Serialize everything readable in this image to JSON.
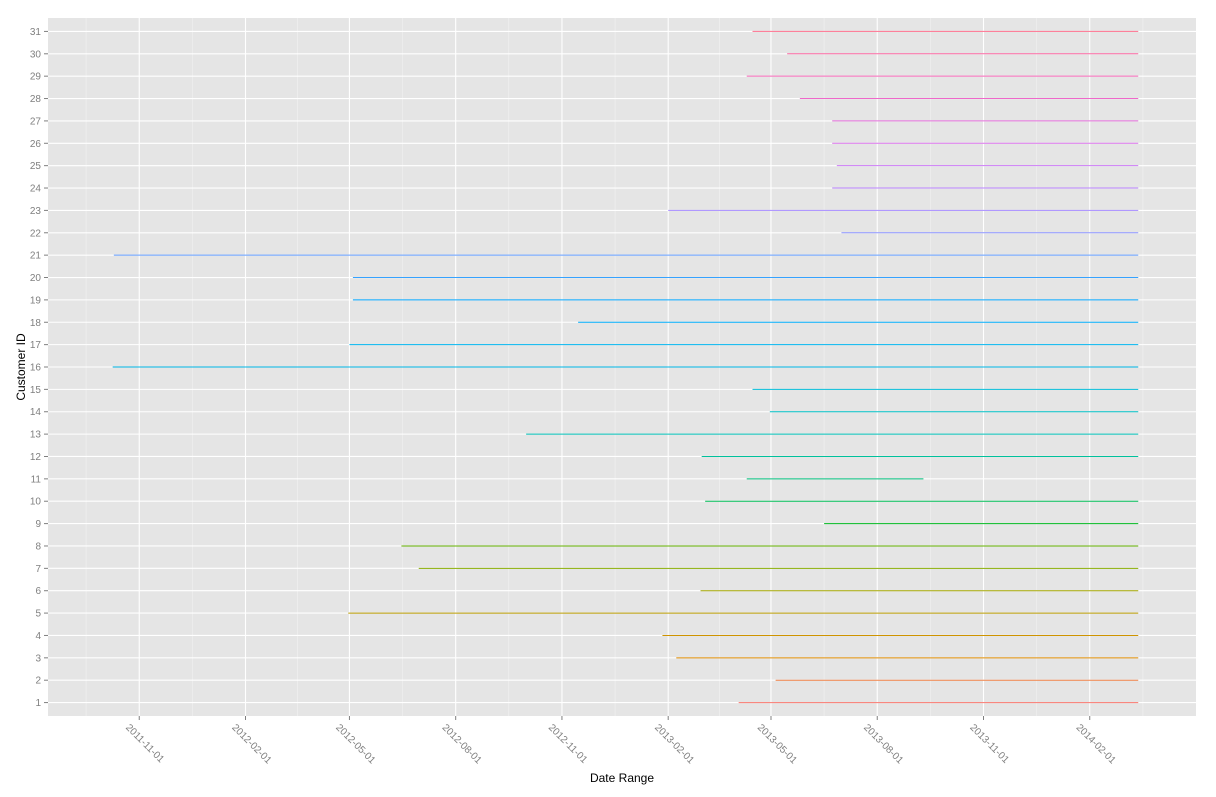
{
  "chart_data": {
    "type": "line",
    "xlabel": "Date Range",
    "ylabel": "Customer ID",
    "x_ticks": [
      "2011-11-01",
      "2012-02-01",
      "2012-05-01",
      "2012-08-01",
      "2012-11-01",
      "2013-02-01",
      "2013-05-01",
      "2013-08-01",
      "2013-11-01",
      "2014-02-01"
    ],
    "xlim": [
      "2011-08-14",
      "2014-05-04"
    ],
    "ylim": [
      0.4,
      31.6
    ],
    "grid": true,
    "legend": "none",
    "series": [
      {
        "id": "1",
        "start": "2013-04-03",
        "end": "2014-03-15",
        "color": "#F8766D"
      },
      {
        "id": "2",
        "start": "2013-05-05",
        "end": "2014-03-15",
        "color": "#EE8044"
      },
      {
        "id": "3",
        "start": "2013-02-08",
        "end": "2014-03-15",
        "color": "#E08B00"
      },
      {
        "id": "4",
        "start": "2013-01-27",
        "end": "2014-03-15",
        "color": "#CF9400"
      },
      {
        "id": "5",
        "start": "2012-04-30",
        "end": "2014-03-15",
        "color": "#BB9D00"
      },
      {
        "id": "6",
        "start": "2013-03-01",
        "end": "2014-03-15",
        "color": "#A3A500"
      },
      {
        "id": "7",
        "start": "2012-06-30",
        "end": "2014-03-15",
        "color": "#88AC00"
      },
      {
        "id": "8",
        "start": "2012-06-15",
        "end": "2014-03-15",
        "color": "#64B200"
      },
      {
        "id": "9",
        "start": "2013-06-16",
        "end": "2014-03-15",
        "color": "#00B81F"
      },
      {
        "id": "10",
        "start": "2013-03-05",
        "end": "2014-03-15",
        "color": "#00BC56"
      },
      {
        "id": "11",
        "start": "2013-04-10",
        "end": "2013-09-10",
        "color": "#00BF7D"
      },
      {
        "id": "12",
        "start": "2013-03-02",
        "end": "2014-03-15",
        "color": "#00C19C"
      },
      {
        "id": "13",
        "start": "2012-10-01",
        "end": "2014-03-15",
        "color": "#00C1B8"
      },
      {
        "id": "14",
        "start": "2013-04-30",
        "end": "2014-03-15",
        "color": "#00BFC4"
      },
      {
        "id": "15",
        "start": "2013-04-15",
        "end": "2014-03-15",
        "color": "#00BCD8"
      },
      {
        "id": "16",
        "start": "2011-10-09",
        "end": "2014-03-15",
        "color": "#00B8E7"
      },
      {
        "id": "17",
        "start": "2012-05-01",
        "end": "2014-03-15",
        "color": "#00B4EF"
      },
      {
        "id": "18",
        "start": "2012-11-15",
        "end": "2014-03-15",
        "color": "#00ADFA"
      },
      {
        "id": "19",
        "start": "2012-05-04",
        "end": "2014-03-15",
        "color": "#00A6FF"
      },
      {
        "id": "20",
        "start": "2012-05-04",
        "end": "2014-03-15",
        "color": "#35A2FF"
      },
      {
        "id": "21",
        "start": "2011-10-10",
        "end": "2014-03-15",
        "color": "#619CFF"
      },
      {
        "id": "22",
        "start": "2013-07-01",
        "end": "2014-03-15",
        "color": "#8B93FF"
      },
      {
        "id": "23",
        "start": "2013-02-01",
        "end": "2014-03-15",
        "color": "#A58AFF"
      },
      {
        "id": "24",
        "start": "2013-06-23",
        "end": "2014-03-15",
        "color": "#BA83FF"
      },
      {
        "id": "25",
        "start": "2013-06-27",
        "end": "2014-03-15",
        "color": "#CB7AF6"
      },
      {
        "id": "26",
        "start": "2013-06-23",
        "end": "2014-03-15",
        "color": "#D973EA"
      },
      {
        "id": "27",
        "start": "2013-06-23",
        "end": "2014-03-15",
        "color": "#E46DDB"
      },
      {
        "id": "28",
        "start": "2013-05-26",
        "end": "2014-03-15",
        "color": "#EE68CA"
      },
      {
        "id": "29",
        "start": "2013-04-10",
        "end": "2014-03-15",
        "color": "#F565B7"
      },
      {
        "id": "30",
        "start": "2013-05-15",
        "end": "2014-03-15",
        "color": "#FA68A2"
      },
      {
        "id": "31",
        "start": "2013-04-15",
        "end": "2014-03-15",
        "color": "#FD6E8B"
      }
    ]
  }
}
